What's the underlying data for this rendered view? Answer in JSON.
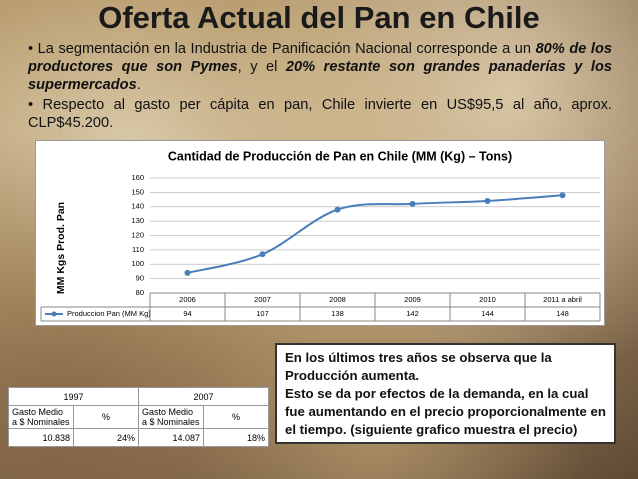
{
  "title": "Oferta Actual del Pan en Chile",
  "bullets": [
    [
      "• La segmentación en la Industria de Panificación Nacional corresponde a un ",
      "80% de los productores que son Pymes",
      ", y el ",
      "20% restante son grandes panaderías y los supermercados",
      "."
    ],
    [
      "• Respecto al gasto per cápita en pan, Chile invierte en US$95,5 al año, aprox. CLP$45.200."
    ]
  ],
  "chart_data": {
    "type": "line",
    "title": "Cantidad de Producción de Pan en Chile (MM (Kg) – Tons)",
    "y_label": "MM Kgs Prod. Pan",
    "categories": [
      "2006",
      "2007",
      "2008",
      "2009",
      "2010",
      "2011 a abril"
    ],
    "series": [
      {
        "name": "Produccion Pan (MM Kg)",
        "color": "#4a7ebb",
        "values": [
          94,
          107,
          138,
          142,
          144,
          148
        ]
      }
    ],
    "ylim": [
      80,
      160
    ],
    "yticks": [
      80,
      90,
      100,
      110,
      120,
      130,
      140,
      150,
      160
    ],
    "grid": true
  },
  "table": {
    "rows": [
      [
        "1997",
        "2007"
      ],
      [
        "Gasto Medio a $ Nominales",
        "%",
        "Gasto Medio a $ Nominales",
        "%"
      ],
      [
        "10.838",
        "24%",
        "14.087",
        "18%"
      ]
    ]
  },
  "callout": [
    "En los últimos tres años se observa que la Producción aumenta.",
    "Esto se da por efectos de la demanda, en la cual fue aumentando en el precio proporcionalmente en el tiempo. (siguiente grafico muestra el precio)"
  ]
}
